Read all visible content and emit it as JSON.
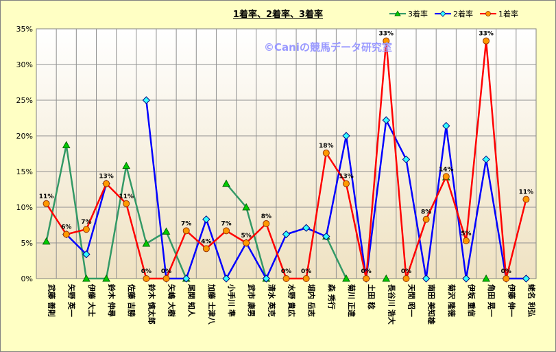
{
  "chart_data": {
    "type": "line",
    "title": "1着率、2着率、3着率",
    "watermark": "©Caniの競馬データ研究室",
    "ylim": [
      0,
      35
    ],
    "yticks": [
      "0%",
      "5%",
      "10%",
      "15%",
      "20%",
      "25%",
      "30%",
      "35%"
    ],
    "grid": true,
    "legend_position": "top-right",
    "categories": [
      "武藤 善則",
      "矢野 英一",
      "伊藤 大士",
      "鈴木 伸尋",
      "佐藤 吉勝",
      "鈴木 慎太郎",
      "矢嶋 大樹",
      "尾関 知人",
      "加藤 士津八",
      "小手川 準",
      "武市 康男",
      "清水 英克",
      "水野 貴広",
      "堀内 岳志",
      "森 秀行",
      "菊川 正達",
      "土田 稔",
      "長谷川 浩大",
      "天間 昭一",
      "南田 美知雄",
      "菊沢 隆徳",
      "伊坂 重信",
      "角田 晃一",
      "伊藤 伸一",
      "蛯名 利弘"
    ],
    "series": [
      {
        "name": "3着率",
        "color": "#339966",
        "marker": "triangle",
        "values": [
          5.2,
          18.7,
          0,
          0,
          15.8,
          4.9,
          6.6,
          0,
          null,
          13.3,
          10,
          0,
          null,
          null,
          5.9,
          0,
          null,
          0,
          null,
          null,
          14.2,
          null,
          0,
          null,
          null
        ],
        "labels": []
      },
      {
        "name": "2着率",
        "color": "#0000FF",
        "marker": "diamond",
        "values": [
          null,
          6.2,
          3.4,
          13.3,
          null,
          25,
          0,
          0,
          8.3,
          0,
          5,
          0,
          6.2,
          7.1,
          5.9,
          20,
          0,
          22.2,
          16.7,
          0,
          21.4,
          0,
          16.7,
          0,
          0
        ],
        "labels": []
      },
      {
        "name": "1着率",
        "color": "#FF0000",
        "marker": "circle",
        "values": [
          10.5,
          6.2,
          6.9,
          13.3,
          10.5,
          0,
          0,
          6.7,
          4.2,
          6.7,
          5,
          7.7,
          0,
          0,
          17.6,
          13.3,
          0,
          33.3,
          0,
          8.3,
          14.3,
          5.3,
          33.3,
          0,
          11.1
        ],
        "labels": [
          "11%",
          "6%",
          "7%",
          "13%",
          "11%",
          "0%",
          "0%",
          "7%",
          "4%",
          "7%",
          "5%",
          "8%",
          "0%",
          "0%",
          "18%",
          "13%",
          "0%",
          "33%",
          "0%",
          "8%",
          "14%",
          "5%",
          "33%",
          "0%",
          "11%"
        ]
      }
    ]
  },
  "legend": [
    {
      "label": "3着率",
      "color": "#339966",
      "marker": "triangle"
    },
    {
      "label": "2着率",
      "color": "#0000FF",
      "marker": "diamond"
    },
    {
      "label": "1着率",
      "color": "#FF0000",
      "marker": "circle"
    }
  ]
}
